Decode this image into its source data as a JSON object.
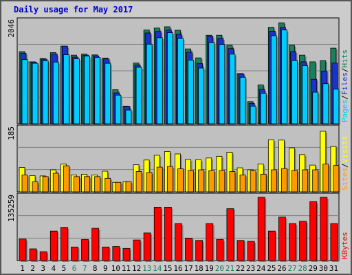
{
  "chart_data": {
    "type": "bar",
    "title": "Daily usage for May 2017",
    "days": [
      "1",
      "2",
      "3",
      "4",
      "5",
      "6",
      "7",
      "8",
      "9",
      "10",
      "11",
      "12",
      "13",
      "14",
      "15",
      "16",
      "17",
      "18",
      "19",
      "20",
      "21",
      "22",
      "23",
      "24",
      "25",
      "26",
      "27",
      "28",
      "29",
      "30",
      "31"
    ],
    "weekend_days": [
      "6",
      "7",
      "13",
      "14",
      "20",
      "21",
      "27",
      "28"
    ],
    "panels": [
      {
        "name": "pages-files-hits",
        "ymax_label": "2046",
        "ymax": 2046,
        "side_label": [
          "Pages",
          "Files",
          "Hits"
        ],
        "series": [
          {
            "name": "Hits",
            "color": "#1a7f5a",
            "values": [
              1450,
              1245,
              1310,
              1430,
              1560,
              1380,
              1400,
              1385,
              1320,
              685,
              355,
              1220,
              1885,
              1925,
              1950,
              1880,
              1505,
              1325,
              1780,
              1780,
              1580,
              1010,
              445,
              780,
              1940,
              2030,
              1580,
              1380,
              1245,
              1270,
              1520
            ]
          },
          {
            "name": "Files",
            "color": "#1a33cc",
            "values": [
              1420,
              1240,
              1300,
              1400,
              1560,
              1340,
              1380,
              1365,
              1305,
              620,
              350,
              1180,
              1825,
              1855,
              1885,
              1800,
              1440,
              1210,
              1760,
              1715,
              1510,
              1000,
              410,
              690,
              1860,
              1935,
              1450,
              1245,
              895,
              1060,
              1220
            ]
          },
          {
            "name": "Pages",
            "color": "#00ccff",
            "values": [
              1290,
              1215,
              1265,
              1240,
              1390,
              1305,
              1360,
              1335,
              1215,
              575,
              275,
              1135,
              1600,
              1730,
              1830,
              1715,
              1280,
              1120,
              1635,
              1595,
              1400,
              935,
              355,
              610,
              1770,
              1885,
              1270,
              1170,
              635,
              805,
              695
            ]
          }
        ]
      },
      {
        "name": "visits-sites",
        "ymax_label": "185",
        "ymax": 185,
        "side_label": [
          "Sites",
          "Visits"
        ],
        "series": [
          {
            "name": "Visits",
            "color": "#ffff00",
            "values": [
              72,
              48,
              47,
              65,
              82,
              50,
              52,
              50,
              61,
              28,
              30,
              80,
              94,
              108,
              119,
              112,
              96,
              95,
              100,
              105,
              117,
              71,
              65,
              82,
              154,
              153,
              130,
              110,
              79,
              179,
              134
            ]
          },
          {
            "name": "Sites",
            "color": "#ff9900",
            "values": [
              50,
              30,
              45,
              55,
              77,
              45,
              45,
              45,
              40,
              28,
              30,
              60,
              57,
              73,
              75,
              68,
              63,
              65,
              63,
              63,
              60,
              50,
              62,
              52,
              65,
              69,
              63,
              65,
              65,
              82,
              78
            ]
          }
        ]
      },
      {
        "name": "kbytes",
        "ymax_label": "135259",
        "ymax": 135259,
        "side_label": [
          "KBytes"
        ],
        "series": [
          {
            "name": "KBytes",
            "color": "#ff0000",
            "values": [
              46000,
              25000,
              19000,
              63000,
              71000,
              29000,
              45000,
              69000,
              29000,
              30000,
              26000,
              44000,
              59000,
              114000,
              114000,
              79000,
              48000,
              43000,
              79000,
              45000,
              111000,
              43000,
              41000,
              135259,
              63000,
              93000,
              79000,
              84000,
              126000,
              135259,
              79000
            ]
          }
        ]
      }
    ]
  },
  "colors": {
    "background": "#cccccc",
    "plot_bg": "#c0c0c0",
    "title": "#0000cc",
    "weekend_label": "#1a7f5a",
    "weekday_label": "#000000",
    "grid": "#808080",
    "separator": "#000000"
  }
}
